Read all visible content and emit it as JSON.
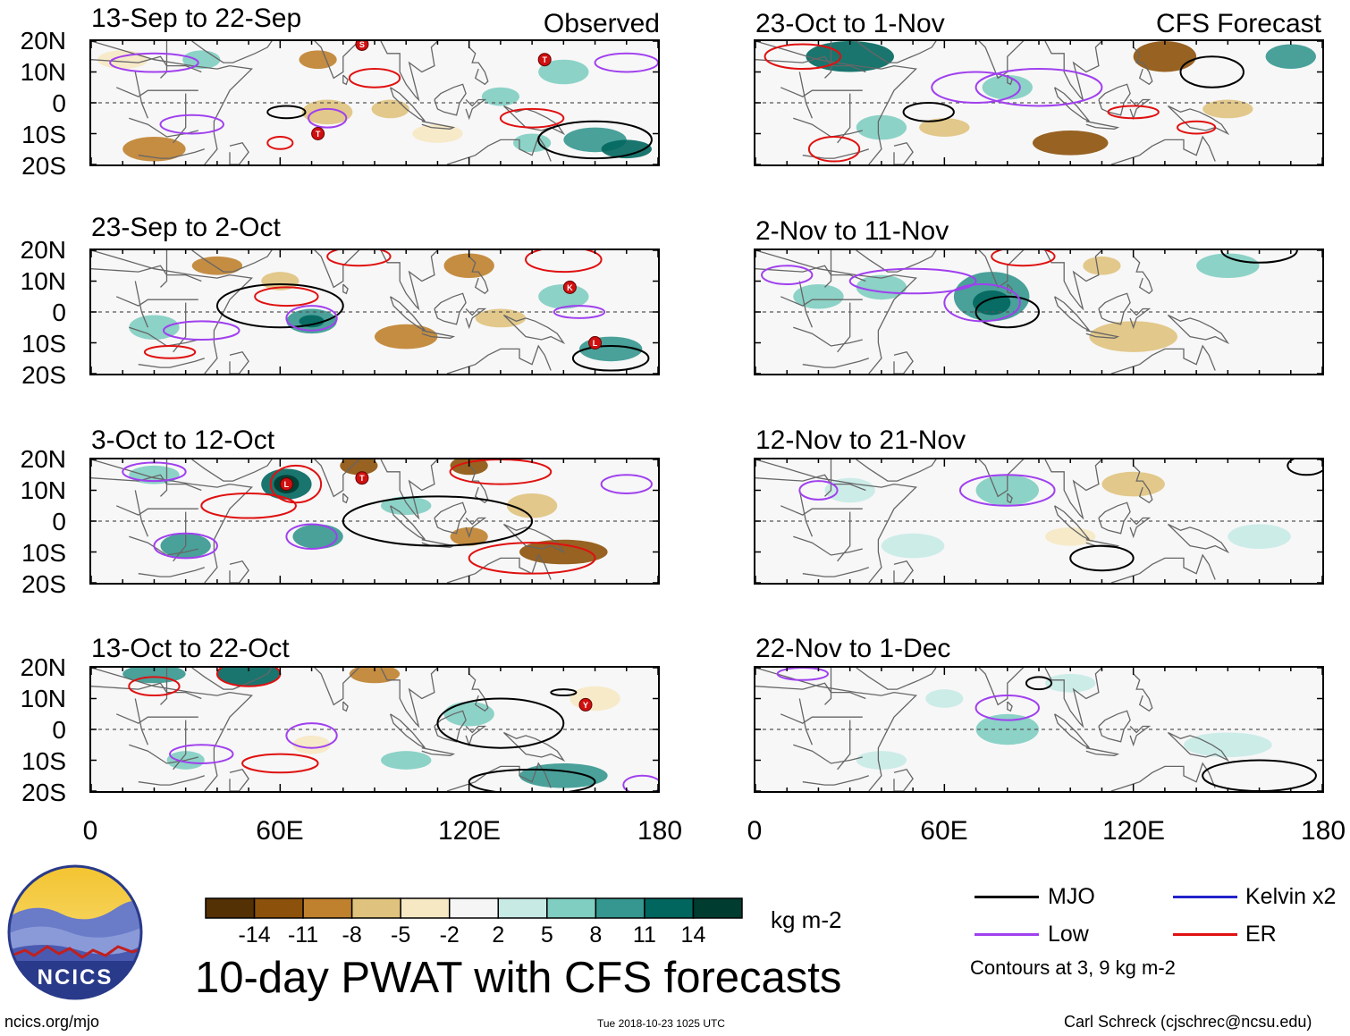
{
  "panels": {
    "observed": [
      {
        "title": "13-Sep to 22-Sep",
        "label": "Observed"
      },
      {
        "title": "23-Sep to 2-Oct"
      },
      {
        "title": "3-Oct to 12-Oct"
      },
      {
        "title": "13-Oct to 22-Oct"
      }
    ],
    "forecast": [
      {
        "title": "23-Oct to 1-Nov",
        "label": "CFS Forecast"
      },
      {
        "title": "2-Nov to 11-Nov"
      },
      {
        "title": "12-Nov to 21-Nov"
      },
      {
        "title": "22-Nov to 1-Dec"
      }
    ]
  },
  "axes": {
    "lat_labels": [
      "20N",
      "10N",
      "0",
      "10S",
      "20S"
    ],
    "lon_labels": [
      "0",
      "60E",
      "120E",
      "180"
    ]
  },
  "storm_markers": [
    {
      "panel": 0,
      "letter": "S",
      "lon": 86,
      "lat": 19
    },
    {
      "panel": 0,
      "letter": "T",
      "lon": 144,
      "lat": 14
    },
    {
      "panel": 0,
      "letter": "T",
      "lon": 72,
      "lat": -10
    },
    {
      "panel": 1,
      "letter": "K",
      "lon": 152,
      "lat": 8
    },
    {
      "panel": 1,
      "letter": "L",
      "lon": 160,
      "lat": -10
    },
    {
      "panel": 2,
      "letter": "L",
      "lon": 62,
      "lat": 12
    },
    {
      "panel": 2,
      "letter": "T",
      "lon": 86,
      "lat": 14
    },
    {
      "panel": 3,
      "letter": "Y",
      "lon": 157,
      "lat": 8
    }
  ],
  "colorbar": {
    "ticks": [
      "-14",
      "-11",
      "-8",
      "-5",
      "-2",
      "2",
      "5",
      "8",
      "11",
      "14"
    ],
    "colors": [
      "#543005",
      "#8c510a",
      "#bf812d",
      "#dfc27d",
      "#f6e8c3",
      "#f5f5f5",
      "#c7eae5",
      "#80cdc1",
      "#35978f",
      "#01665e",
      "#003c30"
    ],
    "units": "kg m-2"
  },
  "title": "10-day PWAT with CFS forecasts",
  "legend": {
    "items": [
      {
        "label": "MJO",
        "color": "#000000"
      },
      {
        "label": "Kelvin x2",
        "color": "#2222cc"
      },
      {
        "label": "Low",
        "color": "#a040ee"
      },
      {
        "label": "ER",
        "color": "#e01010"
      }
    ],
    "note": "Contours at 3, 9 kg m-2"
  },
  "logo": {
    "text": "NCICS"
  },
  "footer": {
    "url": "ncics.org/mjo",
    "timestamp": "Tue 2018-10-23 1025 UTC",
    "author": "Carl Schreck (cjschrec@ncsu.edu)"
  }
}
